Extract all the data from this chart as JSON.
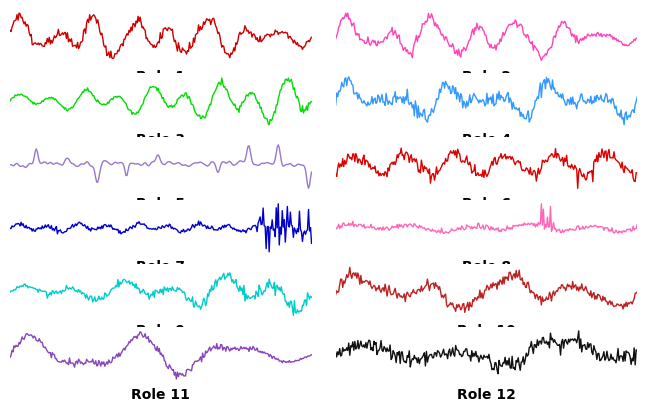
{
  "roles": [
    {
      "name": "Role 1",
      "color": "#cc0000",
      "col": 0,
      "row": 0
    },
    {
      "name": "Role 2",
      "color": "#ff44bb",
      "col": 1,
      "row": 0
    },
    {
      "name": "Role 3",
      "color": "#00dd00",
      "col": 0,
      "row": 1
    },
    {
      "name": "Role 4",
      "color": "#3399ff",
      "col": 1,
      "row": 1
    },
    {
      "name": "Role 5",
      "color": "#9977cc",
      "col": 0,
      "row": 2
    },
    {
      "name": "Role 6",
      "color": "#dd0000",
      "col": 1,
      "row": 2
    },
    {
      "name": "Role 7",
      "color": "#0000cc",
      "col": 0,
      "row": 3
    },
    {
      "name": "Role 8",
      "color": "#ff66bb",
      "col": 1,
      "row": 3
    },
    {
      "name": "Role 9",
      "color": "#00cccc",
      "col": 0,
      "row": 4
    },
    {
      "name": "Role 10",
      "color": "#bb2222",
      "col": 1,
      "row": 4
    },
    {
      "name": "Role 11",
      "color": "#8844bb",
      "col": 0,
      "row": 5
    },
    {
      "name": "Role 12",
      "color": "#111111",
      "col": 1,
      "row": 5
    }
  ],
  "n_points": 300,
  "figsize": [
    6.4,
    4.1
  ],
  "dpi": 100,
  "label_fontsize": 10,
  "label_fontweight": "bold"
}
